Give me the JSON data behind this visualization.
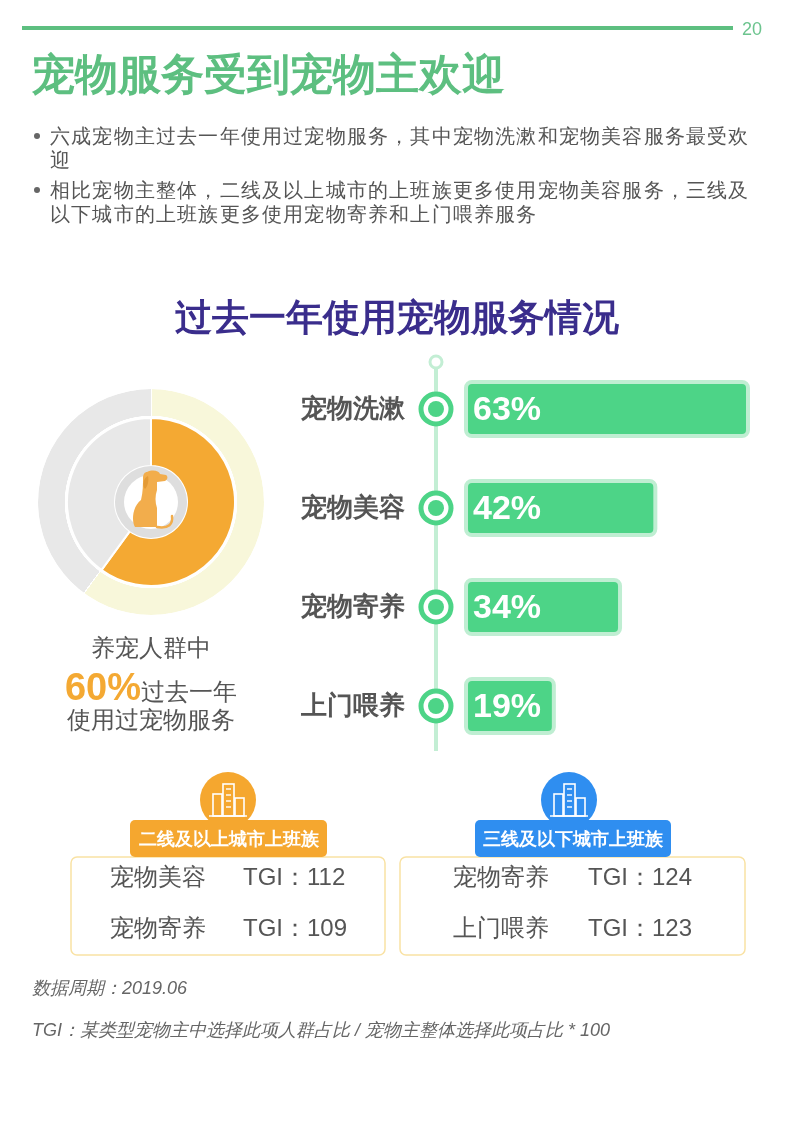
{
  "chart_data": [
    {
      "type": "other",
      "title": "宠物服务受到宠物主欢迎",
      "annotations": [
        "20",
        "六成宠物主过去一年使用过宠物服务，其中宠物洗漱和宠物美容服务最受欢迎",
        "相比宠物主整体，二线及以上城市的上班族更多使用宠物美容服务，三线及以下城市的上班族更多使用宠物寄养和上门喂养服务"
      ]
    },
    {
      "type": "donut",
      "categories": [
        null,
        null
      ],
      "values": [
        60,
        40
      ],
      "colors": [
        "#f4a933",
        "#e8e8e8"
      ],
      "annotations": [
        "养宠人群中",
        "**60%**过去一年",
        "使用过宠物服务"
      ]
    },
    {
      "type": "bar",
      "orientation": "horizontal",
      "title": "过去一年使用宠物服务情况",
      "categories": [
        "宠物洗漱",
        "宠物美容",
        "宠物寄养",
        "上门喂养"
      ],
      "values": [
        63,
        42,
        34,
        19
      ],
      "color": "#4dd487",
      "value_labels": [
        "63%",
        "42%",
        "34%",
        "19%"
      ]
    },
    {
      "type": "other",
      "title": "二线及以上城市上班族",
      "categories": [
        "宠物美容",
        "宠物寄养"
      ],
      "value_labels": [
        "TGI：112",
        "TGI：109"
      ]
    },
    {
      "type": "other",
      "title": "三线及以下城市上班族",
      "categories": [
        "宠物寄养",
        "上门喂养"
      ],
      "value_labels": [
        "TGI：124",
        "TGI：123"
      ]
    },
    {
      "type": "other",
      "annotations": [
        "数据周期：2019.06",
        "TGI：某类型宠物主中选择此项人群占比 / 宠物主整体选择此项占比 * 100"
      ]
    }
  ]
}
